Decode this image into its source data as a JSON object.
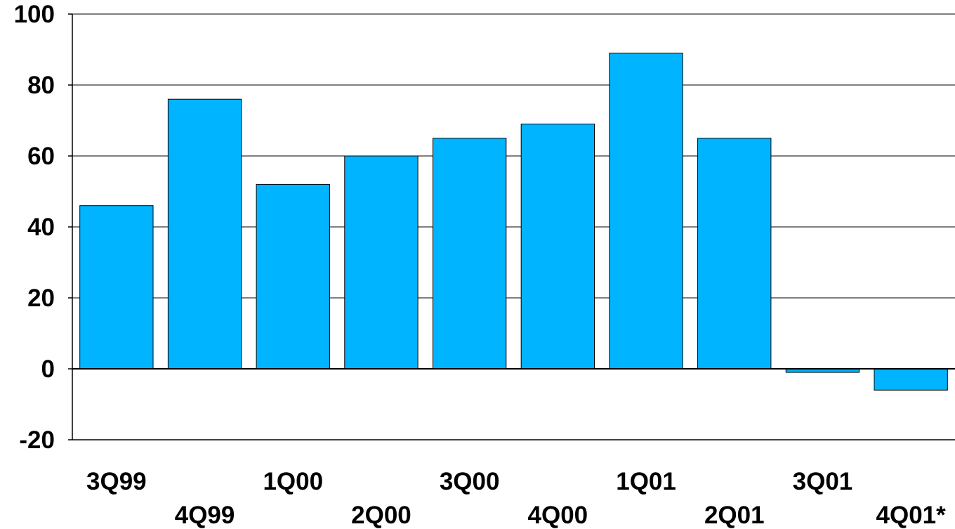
{
  "chart_data": {
    "type": "bar",
    "title": "",
    "xlabel": "",
    "ylabel": "",
    "categories": [
      "3Q99",
      "4Q99",
      "1Q00",
      "2Q00",
      "3Q00",
      "4Q00",
      "1Q01",
      "2Q01",
      "3Q01",
      "4Q01*"
    ],
    "values": [
      46,
      76,
      52,
      60,
      65,
      69,
      89,
      65,
      -1,
      -6
    ],
    "ylim": [
      -20,
      100
    ],
    "yticks": [
      -20,
      0,
      20,
      40,
      60,
      80,
      100
    ],
    "ytick_labels": [
      "-20",
      "0",
      "20",
      "40",
      "60",
      "80",
      "100"
    ],
    "grid": true,
    "legend": "none",
    "colors": {
      "bar_fill": "#00B4FF",
      "bar_stroke": "#000000",
      "grid": "#000000",
      "axis": "#000000",
      "text": "#000000",
      "background": "#FFFFFF"
    }
  }
}
